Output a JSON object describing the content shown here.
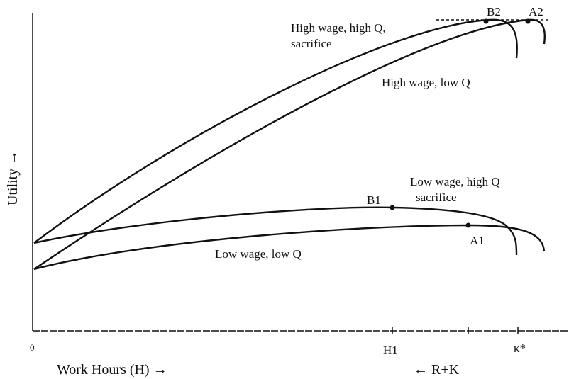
{
  "labels": {
    "high_wage_high_q": [
      "High wage, high Q,",
      "sacrifice"
    ],
    "high_wage_low_q": "High wage, low Q",
    "low_wage_high_q": [
      "Low wage, high Q",
      "sacrifice"
    ],
    "low_wage_low_q": "Low wage, low Q",
    "points": [
      "B2",
      "A2",
      "B1",
      "A1"
    ],
    "y_axis": "Utility →",
    "origin": "0",
    "x_ticks": [
      "H1",
      "κ*"
    ],
    "x_axis": "Work Hours (H) →",
    "x_axis_right": "← R+K"
  }
}
